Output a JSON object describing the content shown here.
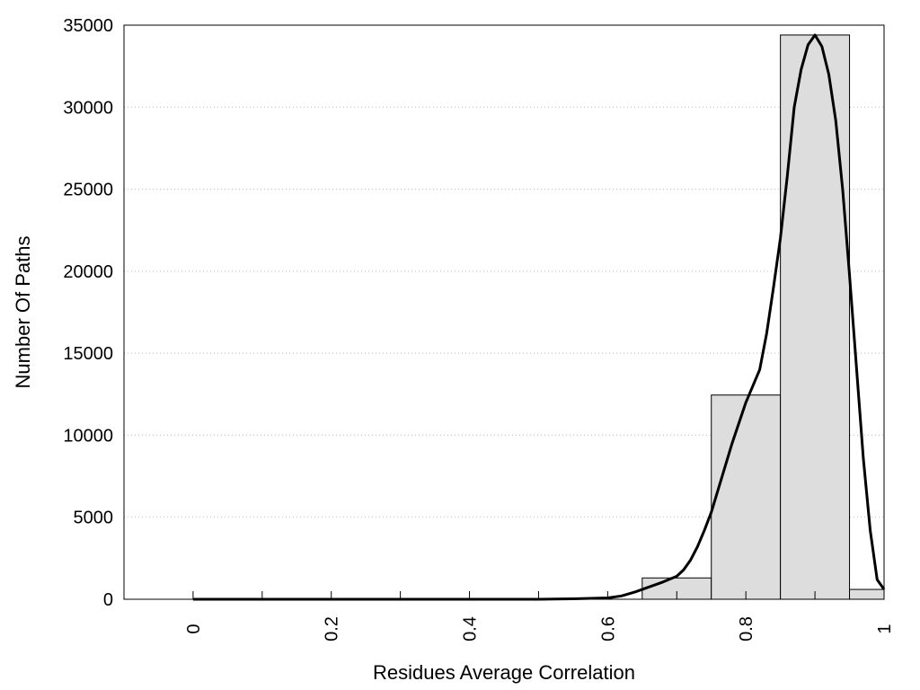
{
  "chart_data": {
    "type": "bar",
    "title": "",
    "xlabel": "Residues Average Correlation",
    "ylabel": "Number Of Paths",
    "xlim": [
      -0.1,
      1.0
    ],
    "ylim": [
      0,
      35000
    ],
    "xticks": [
      0,
      0.2,
      0.4,
      0.6,
      0.8,
      1
    ],
    "xtick_labels": [
      "0",
      "0.2",
      "0.4",
      "0.6",
      "0.8",
      "1"
    ],
    "xminor_ticks": [
      0.1,
      0.3,
      0.5,
      0.7,
      0.9
    ],
    "yticks": [
      0,
      5000,
      10000,
      15000,
      20000,
      25000,
      30000,
      35000
    ],
    "ytick_labels": [
      "0",
      "5000",
      "10000",
      "15000",
      "20000",
      "25000",
      "30000",
      "35000"
    ],
    "grid": "horizontal-dotted",
    "bar_color": "#dddddd",
    "curve_color": "#000000",
    "bins": [
      {
        "x0": 0.65,
        "x1": 0.75,
        "value": 1300
      },
      {
        "x0": 0.75,
        "x1": 0.85,
        "value": 12450
      },
      {
        "x0": 0.85,
        "x1": 0.95,
        "value": 34400
      },
      {
        "x0": 0.95,
        "x1": 1.0,
        "value": 600
      }
    ],
    "fit_curve": {
      "x": [
        0.0,
        0.5,
        0.55,
        0.6,
        0.62,
        0.64,
        0.66,
        0.68,
        0.7,
        0.71,
        0.72,
        0.73,
        0.74,
        0.75,
        0.76,
        0.78,
        0.8,
        0.82,
        0.83,
        0.84,
        0.85,
        0.86,
        0.87,
        0.88,
        0.89,
        0.9,
        0.91,
        0.92,
        0.93,
        0.94,
        0.95,
        0.96,
        0.97,
        0.98,
        0.99,
        1.0
      ],
      "y": [
        0,
        0,
        30,
        80,
        200,
        450,
        750,
        1050,
        1400,
        1800,
        2400,
        3200,
        4200,
        5300,
        6700,
        9500,
        12000,
        14000,
        16200,
        19000,
        22000,
        25800,
        30000,
        32300,
        33800,
        34400,
        33700,
        32000,
        29200,
        25000,
        19800,
        14200,
        8600,
        4200,
        1200,
        600
      ]
    }
  }
}
